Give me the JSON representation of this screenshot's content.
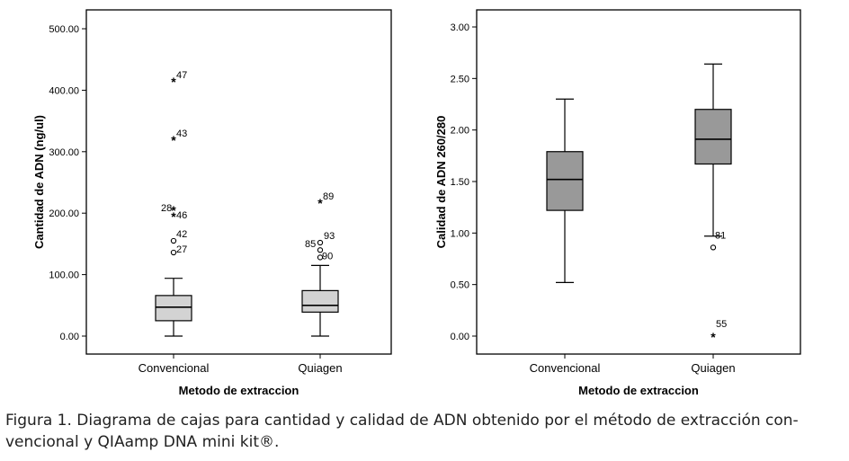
{
  "chart_data": [
    {
      "type": "boxplot",
      "xlabel": "Metodo de extraccion",
      "ylabel": "Cantidad de ADN (ng/ul)",
      "ylim": [
        0,
        500
      ],
      "ytick_labels": [
        "0.00",
        "100.00",
        "200.00",
        "300.00",
        "400.00",
        "500.00"
      ],
      "categories": [
        "Convencional",
        "Quiagen"
      ],
      "boxes": [
        {
          "category": "Convencional",
          "whisker_low": 0,
          "q1": 25,
          "median": 47,
          "q3": 66,
          "whisker_high": 94
        },
        {
          "category": "Quiagen",
          "whisker_low": 0,
          "q1": 39,
          "median": 50,
          "q3": 74,
          "whisker_high": 115
        }
      ],
      "outliers": [
        {
          "category": "Convencional",
          "value": 415,
          "label": "47",
          "symbol": "*"
        },
        {
          "category": "Convencional",
          "value": 320,
          "label": "43",
          "symbol": "*"
        },
        {
          "category": "Convencional",
          "value": 206,
          "label": "28",
          "symbol": "*"
        },
        {
          "category": "Convencional",
          "value": 196,
          "label": "46",
          "symbol": "*"
        },
        {
          "category": "Convencional",
          "value": 155,
          "label": "42",
          "symbol": "o"
        },
        {
          "category": "Convencional",
          "value": 136,
          "label": "27",
          "symbol": "o"
        },
        {
          "category": "Quiagen",
          "value": 218,
          "label": "89",
          "symbol": "*"
        },
        {
          "category": "Quiagen",
          "value": 152,
          "label": "93",
          "symbol": "o"
        },
        {
          "category": "Quiagen",
          "value": 140,
          "label": "85",
          "symbol": "o"
        },
        {
          "category": "Quiagen",
          "value": 128,
          "label": "90",
          "symbol": "o"
        }
      ],
      "box_fill": "#d3d3d3"
    },
    {
      "type": "boxplot",
      "xlabel": "Metodo de extraccion",
      "ylabel": "Calidad de ADN 260/280",
      "ylim": [
        0,
        3
      ],
      "ytick_labels": [
        "0.00",
        "0.50",
        "1.00",
        "1.50",
        "2.00",
        "2.50",
        "3.00"
      ],
      "categories": [
        "Convencional",
        "Quiagen"
      ],
      "boxes": [
        {
          "category": "Convencional",
          "whisker_low": 0.52,
          "q1": 1.22,
          "median": 1.52,
          "q3": 1.79,
          "whisker_high": 2.3
        },
        {
          "category": "Quiagen",
          "whisker_low": 0.97,
          "q1": 1.67,
          "median": 1.91,
          "q3": 2.2,
          "whisker_high": 2.64
        }
      ],
      "outliers": [
        {
          "category": "Quiagen",
          "value": 0.86,
          "label": "81",
          "symbol": "o"
        },
        {
          "category": "Quiagen",
          "value": 0.0,
          "label": "55",
          "symbol": "*"
        }
      ],
      "box_fill": "#999999"
    }
  ],
  "caption": {
    "line1": "Figura 1. Diagrama de cajas para cantidad y calidad de ADN obtenido por el método de extracción con-",
    "line2": "vencional y QIAamp DNA mini kit®."
  }
}
